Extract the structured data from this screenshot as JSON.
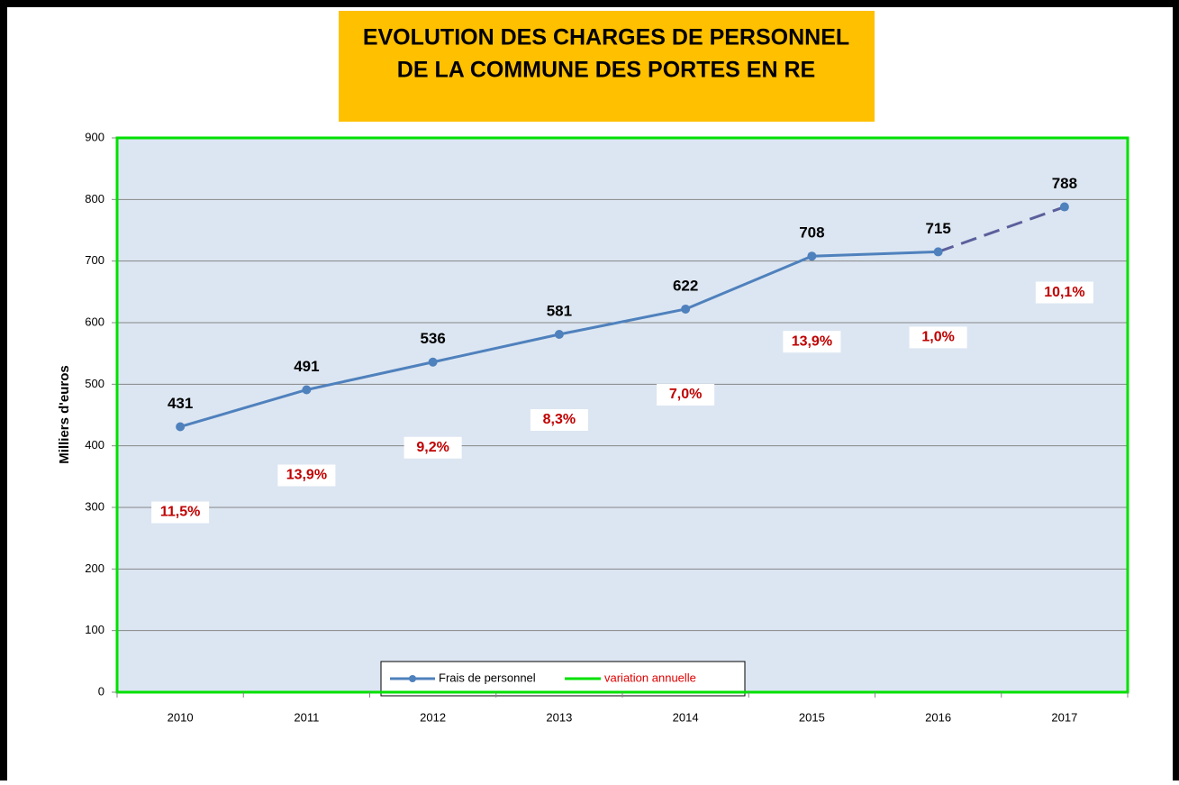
{
  "chart_data": {
    "type": "line",
    "title_lines": [
      "EVOLUTION DES CHARGES DE PERSONNEL",
      "DE LA COMMUNE DES PORTES EN RE"
    ],
    "y_axis_label": "Milliers d'euros",
    "categories": [
      "2010",
      "2011",
      "2012",
      "2013",
      "2014",
      "2015",
      "2016",
      "2017"
    ],
    "series": [
      {
        "name": "Frais de personnel",
        "color": "#4f81bd",
        "dashed_color": "#5b5f9b",
        "values": [
          431,
          491,
          536,
          581,
          622,
          708,
          715,
          788
        ]
      },
      {
        "name": "variation annuelle",
        "color": "#00e000",
        "label_color": "#c00000",
        "values": [
          11.5,
          13.9,
          9.2,
          8.3,
          7.0,
          13.9,
          1.0,
          10.1
        ],
        "value_labels": [
          "11,5%",
          "13,9%",
          "9,2%",
          "8,3%",
          "7,0%",
          "13,9%",
          "1,0%",
          "10,1%"
        ]
      }
    ],
    "ylim": [
      0,
      900
    ],
    "yticks": [
      0,
      100,
      200,
      300,
      400,
      500,
      600,
      700,
      800,
      900
    ],
    "grid": true
  }
}
